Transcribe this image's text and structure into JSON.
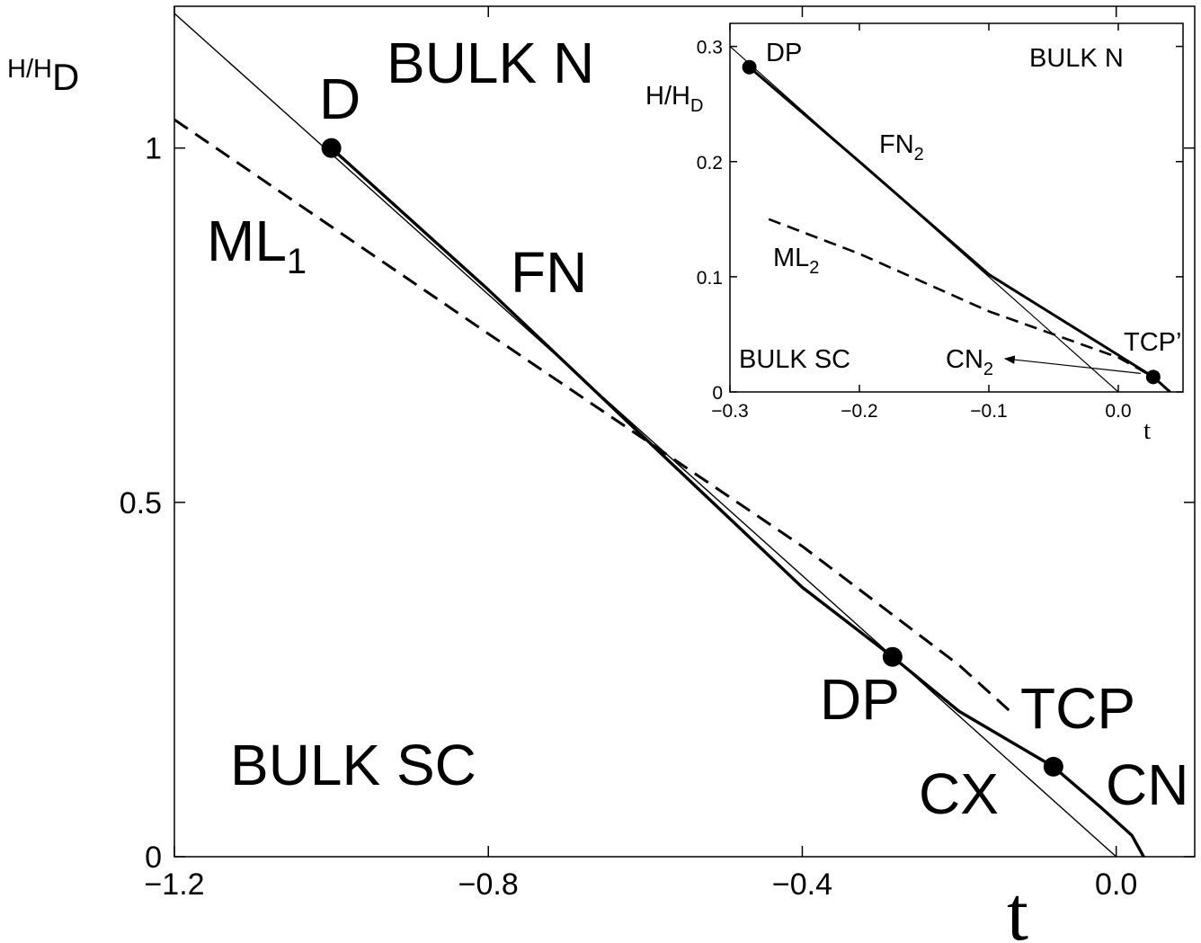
{
  "chart_data": [
    {
      "type": "line",
      "xlabel": "t",
      "ylabel": "H/H",
      "ylabel_sub": "D",
      "xlim": [
        -1.2,
        0.1
      ],
      "ylim": [
        0,
        1.2
      ],
      "xticks": [
        -1.2,
        -0.8,
        -0.4,
        0.0
      ],
      "xtick_labels": [
        "−1.2",
        "−0.8",
        "−0.4",
        "0.0"
      ],
      "yticks": [
        0,
        0.5,
        1
      ],
      "ytick_labels": [
        "0",
        "0.5",
        "1"
      ],
      "series": [
        {
          "style": "thin",
          "points": [
            [
              -1.2,
              1.19
            ],
            [
              0.0,
              0.0
            ]
          ]
        },
        {
          "style": "thick",
          "points": [
            [
              -1.0,
              1.0
            ],
            [
              -0.8,
              0.8
            ],
            [
              -0.6,
              0.59
            ],
            [
              -0.4,
              0.38
            ],
            [
              -0.285,
              0.282
            ],
            [
              -0.2,
              0.205
            ],
            [
              -0.08,
              0.127
            ],
            [
              -0.02,
              0.07
            ],
            [
              0.02,
              0.03
            ],
            [
              0.035,
              0.0
            ]
          ]
        },
        {
          "style": "dashed",
          "points": [
            [
              -1.2,
              1.04
            ],
            [
              -0.8,
              0.738
            ],
            [
              -0.4,
              0.438
            ],
            [
              -0.2,
              0.27
            ],
            [
              -0.13,
              0.2
            ]
          ]
        }
      ],
      "markers": [
        {
          "x": -1.0,
          "y": 1.0
        },
        {
          "x": -0.285,
          "y": 0.282
        },
        {
          "x": -0.08,
          "y": 0.127
        }
      ],
      "annotations": [
        {
          "text": "BULK N",
          "x": -0.9,
          "y": 1.1
        },
        {
          "text": "D",
          "x": -1.0,
          "y": 1.05
        },
        {
          "text": "ML",
          "sub": "1",
          "x": -1.12,
          "y": 0.85
        },
        {
          "text": "FN",
          "x": -0.8,
          "y": 0.8
        },
        {
          "text": "DP",
          "x": -0.3,
          "y": 0.2
        },
        {
          "text": "TCP",
          "x": -0.1,
          "y": 0.2
        },
        {
          "text": "BULK SC",
          "x": -1.0,
          "y": 0.13
        },
        {
          "text": "CX",
          "x": -0.2,
          "y": 0.07
        },
        {
          "text": "CN",
          "x": 0.02,
          "y": 0.1
        }
      ]
    },
    {
      "type": "line",
      "xlabel": "t",
      "ylabel": "H/H",
      "ylabel_sub": "D",
      "xlim": [
        -0.3,
        0.05
      ],
      "ylim": [
        0,
        0.32
      ],
      "xticks": [
        -0.3,
        -0.2,
        -0.1,
        0.0
      ],
      "xtick_labels": [
        "−0.3",
        "−0.2",
        "−0.1",
        "0.0"
      ],
      "yticks": [
        0,
        0.1,
        0.2,
        0.3
      ],
      "ytick_labels": [
        "0",
        "0.1",
        "0.2",
        "0.3"
      ],
      "series": [
        {
          "style": "thin",
          "points": [
            [
              -0.3,
              0.3
            ],
            [
              0.0,
              0.0
            ]
          ]
        },
        {
          "style": "thick",
          "points": [
            [
              -0.285,
              0.282
            ],
            [
              -0.2,
              0.2
            ],
            [
              -0.1,
              0.102
            ],
            [
              0.0,
              0.032
            ],
            [
              0.027,
              0.013
            ],
            [
              0.04,
              0.0
            ]
          ]
        },
        {
          "style": "dashed",
          "points": [
            [
              -0.27,
              0.15
            ],
            [
              -0.2,
              0.12
            ],
            [
              -0.1,
              0.07
            ],
            [
              0.0,
              0.03
            ],
            [
              0.027,
              0.013
            ]
          ]
        }
      ],
      "markers": [
        {
          "x": -0.285,
          "y": 0.282
        },
        {
          "x": 0.027,
          "y": 0.013
        }
      ],
      "annotations": [
        {
          "text": "DP",
          "x": -0.27,
          "y": 0.3
        },
        {
          "text": "BULK N",
          "x": -0.02,
          "y": 0.3
        },
        {
          "text": "FN",
          "sub": "2",
          "x": -0.2,
          "y": 0.21
        },
        {
          "text": "ML",
          "sub": "2",
          "x": -0.27,
          "y": 0.12
        },
        {
          "text": "BULK SC",
          "x": -0.28,
          "y": 0.03
        },
        {
          "text": "CN",
          "sub": "2",
          "x": -0.13,
          "y": 0.03
        },
        {
          "text": "TCP’",
          "x": 0.02,
          "y": 0.05
        }
      ]
    }
  ]
}
